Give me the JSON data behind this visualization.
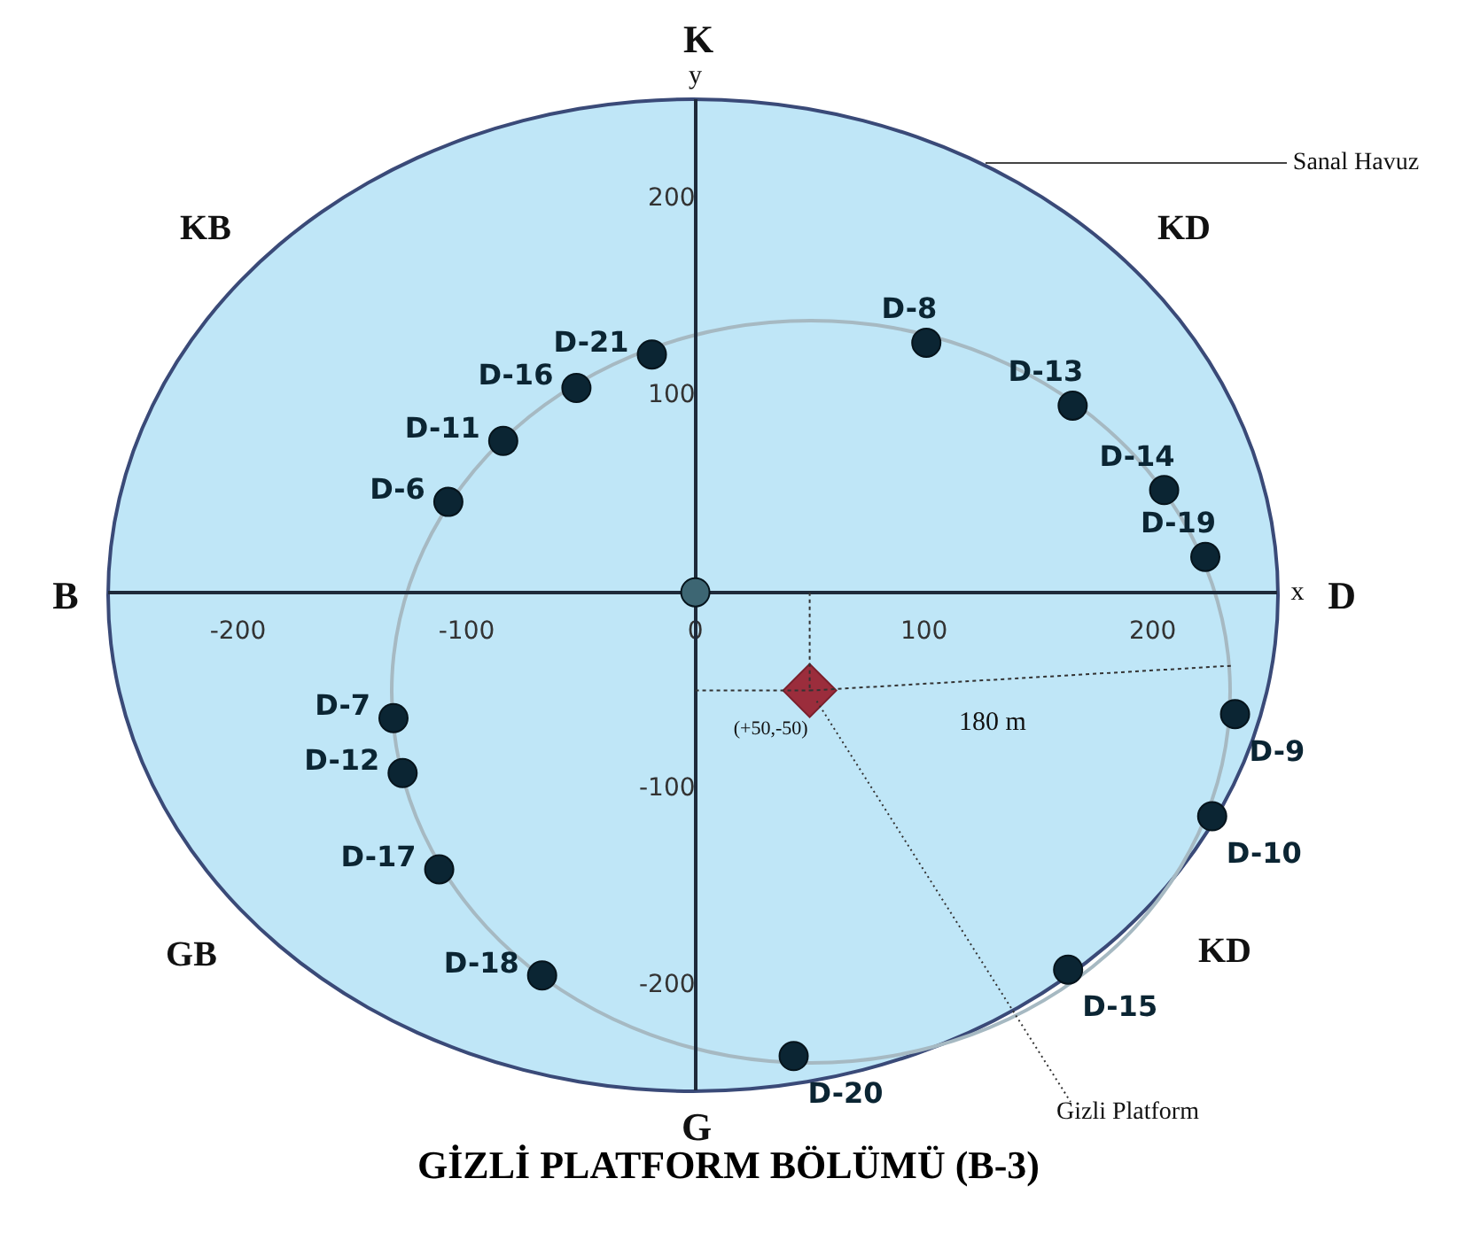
{
  "chart_data": {
    "type": "scatter",
    "title": "GİZLİ PLATFORM BÖLÜMÜ (B-3)",
    "xlabel": "x",
    "ylabel": "y",
    "xlim": [
      -256,
      254
    ],
    "ylim": [
      -253,
      250
    ],
    "xticks": [
      -200,
      -100,
      0,
      100,
      200
    ],
    "yticks": [
      -200,
      -100,
      100,
      200
    ],
    "marker": "circle",
    "series": [
      {
        "name": "D-8",
        "color": "#0b2533",
        "x": [
          101
        ],
        "values": [
          127
        ]
      },
      {
        "name": "D-13",
        "color": "#0b2533",
        "x": [
          165
        ],
        "values": [
          95
        ]
      },
      {
        "name": "D-14",
        "color": "#0b2533",
        "x": [
          205
        ],
        "values": [
          52
        ]
      },
      {
        "name": "D-19",
        "color": "#0b2533",
        "x": [
          223
        ],
        "values": [
          18
        ]
      },
      {
        "name": "D-9",
        "color": "#0b2533",
        "x": [
          236
        ],
        "values": [
          -62
        ]
      },
      {
        "name": "D-10",
        "color": "#0b2533",
        "x": [
          226
        ],
        "values": [
          -114
        ]
      },
      {
        "name": "D-15",
        "color": "#0b2533",
        "x": [
          163
        ],
        "values": [
          -192
        ]
      },
      {
        "name": "D-20",
        "color": "#0b2533",
        "x": [
          43
        ],
        "values": [
          -236
        ]
      },
      {
        "name": "D-18",
        "color": "#0b2533",
        "x": [
          -67
        ],
        "values": [
          -195
        ]
      },
      {
        "name": "D-17",
        "color": "#0b2533",
        "x": [
          -112
        ],
        "values": [
          -141
        ]
      },
      {
        "name": "D-12",
        "color": "#0b2533",
        "x": [
          -128
        ],
        "values": [
          -92
        ]
      },
      {
        "name": "D-7",
        "color": "#0b2533",
        "x": [
          -132
        ],
        "values": [
          -64
        ]
      },
      {
        "name": "D-6",
        "color": "#0b2533",
        "x": [
          -108
        ],
        "values": [
          46
        ]
      },
      {
        "name": "D-11",
        "color": "#0b2533",
        "x": [
          -84
        ],
        "values": [
          77
        ]
      },
      {
        "name": "D-16",
        "color": "#0b2533",
        "x": [
          -52
        ],
        "values": [
          104
        ]
      },
      {
        "name": "D-21",
        "color": "#0b2533",
        "x": [
          -19
        ],
        "values": [
          121
        ]
      },
      {
        "color": "#3d6673",
        "x": [
          0
        ],
        "values": [
          0
        ]
      },
      {
        "color": "#9b2d3c",
        "marker": "diamond",
        "x": [
          50
        ],
        "values": [
          -50
        ]
      }
    ],
    "annotations": [
      "K",
      "KB",
      "KD",
      "B",
      "D",
      "GB",
      "KD",
      "G",
      "Sanal Havuz",
      "180 m",
      {
        "text": "(+50,-50)",
        "x": 50,
        "y": -50
      },
      {
        "text": "Gizli Platform",
        "x": 50,
        "y": -50
      }
    ]
  }
}
